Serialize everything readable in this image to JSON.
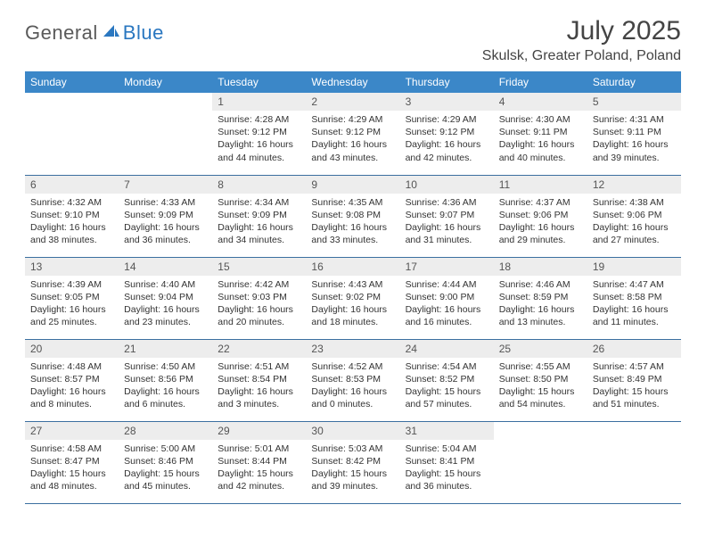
{
  "brand": {
    "text1": "General",
    "text2": "Blue",
    "color_gray": "#5a5a5a",
    "color_blue": "#2a77c0",
    "icon_fill": "#2a77c0"
  },
  "header": {
    "title": "July 2025",
    "location": "Skulsk, Greater Poland, Poland"
  },
  "styling": {
    "header_bg": "#3b87c8",
    "header_text": "#ffffff",
    "daynum_bg": "#ededed",
    "daynum_text": "#555555",
    "border_color": "#3b6fa0",
    "body_text": "#333333",
    "header_fontsize": 12,
    "daynum_fontsize": 12,
    "content_fontsize": 10.5
  },
  "weekdays": [
    "Sunday",
    "Monday",
    "Tuesday",
    "Wednesday",
    "Thursday",
    "Friday",
    "Saturday"
  ],
  "weeks": [
    [
      null,
      null,
      {
        "n": "1",
        "sr": "Sunrise: 4:28 AM",
        "ss": "Sunset: 9:12 PM",
        "dl": "Daylight: 16 hours and 44 minutes."
      },
      {
        "n": "2",
        "sr": "Sunrise: 4:29 AM",
        "ss": "Sunset: 9:12 PM",
        "dl": "Daylight: 16 hours and 43 minutes."
      },
      {
        "n": "3",
        "sr": "Sunrise: 4:29 AM",
        "ss": "Sunset: 9:12 PM",
        "dl": "Daylight: 16 hours and 42 minutes."
      },
      {
        "n": "4",
        "sr": "Sunrise: 4:30 AM",
        "ss": "Sunset: 9:11 PM",
        "dl": "Daylight: 16 hours and 40 minutes."
      },
      {
        "n": "5",
        "sr": "Sunrise: 4:31 AM",
        "ss": "Sunset: 9:11 PM",
        "dl": "Daylight: 16 hours and 39 minutes."
      }
    ],
    [
      {
        "n": "6",
        "sr": "Sunrise: 4:32 AM",
        "ss": "Sunset: 9:10 PM",
        "dl": "Daylight: 16 hours and 38 minutes."
      },
      {
        "n": "7",
        "sr": "Sunrise: 4:33 AM",
        "ss": "Sunset: 9:09 PM",
        "dl": "Daylight: 16 hours and 36 minutes."
      },
      {
        "n": "8",
        "sr": "Sunrise: 4:34 AM",
        "ss": "Sunset: 9:09 PM",
        "dl": "Daylight: 16 hours and 34 minutes."
      },
      {
        "n": "9",
        "sr": "Sunrise: 4:35 AM",
        "ss": "Sunset: 9:08 PM",
        "dl": "Daylight: 16 hours and 33 minutes."
      },
      {
        "n": "10",
        "sr": "Sunrise: 4:36 AM",
        "ss": "Sunset: 9:07 PM",
        "dl": "Daylight: 16 hours and 31 minutes."
      },
      {
        "n": "11",
        "sr": "Sunrise: 4:37 AM",
        "ss": "Sunset: 9:06 PM",
        "dl": "Daylight: 16 hours and 29 minutes."
      },
      {
        "n": "12",
        "sr": "Sunrise: 4:38 AM",
        "ss": "Sunset: 9:06 PM",
        "dl": "Daylight: 16 hours and 27 minutes."
      }
    ],
    [
      {
        "n": "13",
        "sr": "Sunrise: 4:39 AM",
        "ss": "Sunset: 9:05 PM",
        "dl": "Daylight: 16 hours and 25 minutes."
      },
      {
        "n": "14",
        "sr": "Sunrise: 4:40 AM",
        "ss": "Sunset: 9:04 PM",
        "dl": "Daylight: 16 hours and 23 minutes."
      },
      {
        "n": "15",
        "sr": "Sunrise: 4:42 AM",
        "ss": "Sunset: 9:03 PM",
        "dl": "Daylight: 16 hours and 20 minutes."
      },
      {
        "n": "16",
        "sr": "Sunrise: 4:43 AM",
        "ss": "Sunset: 9:02 PM",
        "dl": "Daylight: 16 hours and 18 minutes."
      },
      {
        "n": "17",
        "sr": "Sunrise: 4:44 AM",
        "ss": "Sunset: 9:00 PM",
        "dl": "Daylight: 16 hours and 16 minutes."
      },
      {
        "n": "18",
        "sr": "Sunrise: 4:46 AM",
        "ss": "Sunset: 8:59 PM",
        "dl": "Daylight: 16 hours and 13 minutes."
      },
      {
        "n": "19",
        "sr": "Sunrise: 4:47 AM",
        "ss": "Sunset: 8:58 PM",
        "dl": "Daylight: 16 hours and 11 minutes."
      }
    ],
    [
      {
        "n": "20",
        "sr": "Sunrise: 4:48 AM",
        "ss": "Sunset: 8:57 PM",
        "dl": "Daylight: 16 hours and 8 minutes."
      },
      {
        "n": "21",
        "sr": "Sunrise: 4:50 AM",
        "ss": "Sunset: 8:56 PM",
        "dl": "Daylight: 16 hours and 6 minutes."
      },
      {
        "n": "22",
        "sr": "Sunrise: 4:51 AM",
        "ss": "Sunset: 8:54 PM",
        "dl": "Daylight: 16 hours and 3 minutes."
      },
      {
        "n": "23",
        "sr": "Sunrise: 4:52 AM",
        "ss": "Sunset: 8:53 PM",
        "dl": "Daylight: 16 hours and 0 minutes."
      },
      {
        "n": "24",
        "sr": "Sunrise: 4:54 AM",
        "ss": "Sunset: 8:52 PM",
        "dl": "Daylight: 15 hours and 57 minutes."
      },
      {
        "n": "25",
        "sr": "Sunrise: 4:55 AM",
        "ss": "Sunset: 8:50 PM",
        "dl": "Daylight: 15 hours and 54 minutes."
      },
      {
        "n": "26",
        "sr": "Sunrise: 4:57 AM",
        "ss": "Sunset: 8:49 PM",
        "dl": "Daylight: 15 hours and 51 minutes."
      }
    ],
    [
      {
        "n": "27",
        "sr": "Sunrise: 4:58 AM",
        "ss": "Sunset: 8:47 PM",
        "dl": "Daylight: 15 hours and 48 minutes."
      },
      {
        "n": "28",
        "sr": "Sunrise: 5:00 AM",
        "ss": "Sunset: 8:46 PM",
        "dl": "Daylight: 15 hours and 45 minutes."
      },
      {
        "n": "29",
        "sr": "Sunrise: 5:01 AM",
        "ss": "Sunset: 8:44 PM",
        "dl": "Daylight: 15 hours and 42 minutes."
      },
      {
        "n": "30",
        "sr": "Sunrise: 5:03 AM",
        "ss": "Sunset: 8:42 PM",
        "dl": "Daylight: 15 hours and 39 minutes."
      },
      {
        "n": "31",
        "sr": "Sunrise: 5:04 AM",
        "ss": "Sunset: 8:41 PM",
        "dl": "Daylight: 15 hours and 36 minutes."
      },
      null,
      null
    ]
  ]
}
